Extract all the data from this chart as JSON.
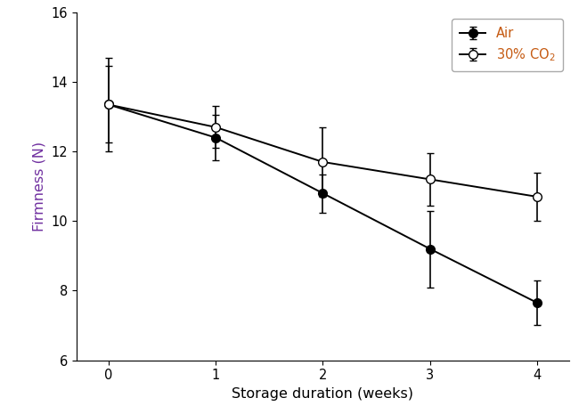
{
  "x": [
    0,
    1,
    2,
    3,
    4
  ],
  "air_y": [
    13.35,
    12.4,
    10.8,
    9.2,
    7.65
  ],
  "air_se": [
    1.35,
    0.65,
    0.55,
    1.1,
    0.65
  ],
  "co2_y": [
    13.35,
    12.7,
    11.7,
    11.2,
    10.7
  ],
  "co2_se": [
    1.1,
    0.6,
    1.0,
    0.75,
    0.7
  ],
  "xlabel": "Storage duration (weeks)",
  "ylabel": "Firmness (N)",
  "ylabel_color": "#7030a0",
  "legend_air": "Air",
  "legend_co2": "30% CO$_2$",
  "legend_color": "#c55a11",
  "xlim": [
    -0.3,
    4.3
  ],
  "ylim": [
    6,
    16
  ],
  "yticks": [
    6,
    8,
    10,
    12,
    14,
    16
  ],
  "xticks": [
    0,
    1,
    2,
    3,
    4
  ],
  "line_color": "black",
  "markersize": 7,
  "linewidth": 1.4,
  "capsize": 3,
  "elinewidth": 1.2,
  "legend_fontsize": 10.5,
  "axis_fontsize": 11.5,
  "tick_fontsize": 10.5
}
